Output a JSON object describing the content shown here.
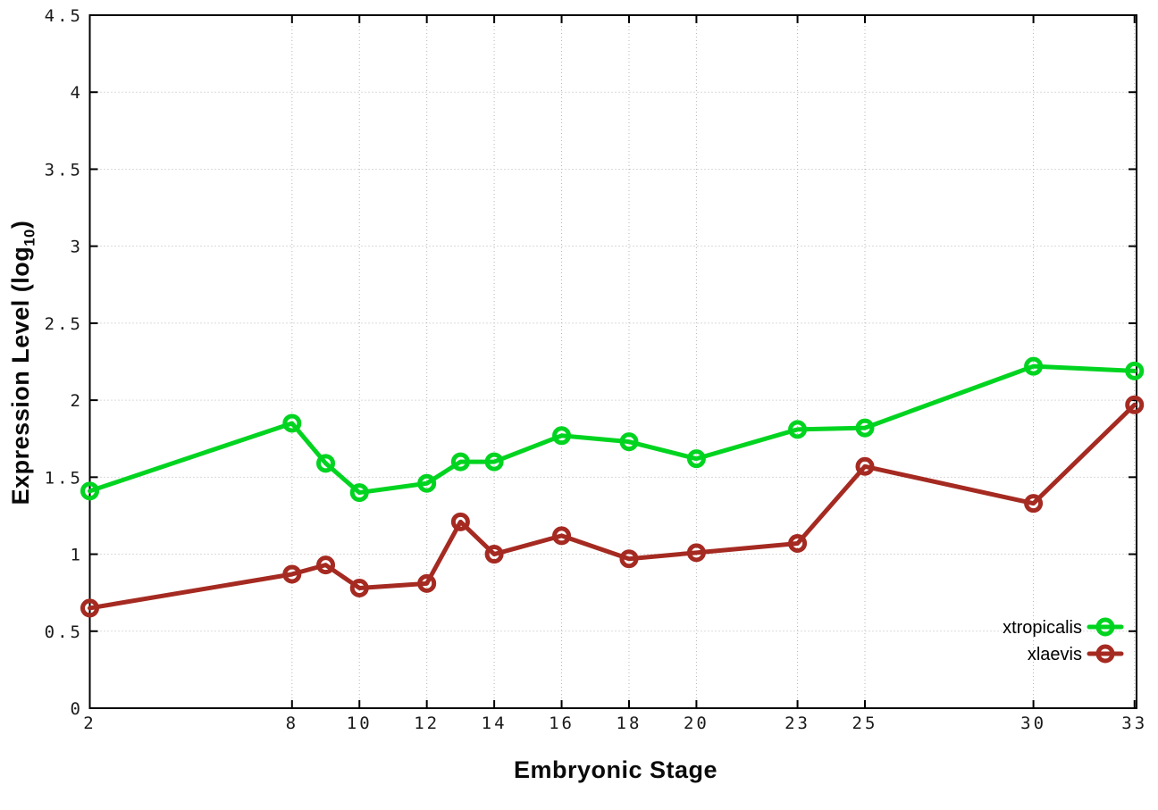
{
  "page": {
    "background_color": "#ffffff"
  },
  "chart_data": {
    "type": "line",
    "title": "",
    "xlabel": "Embryonic Stage",
    "ylabel": "Expression Level (log10)",
    "ylabel_parts": {
      "main": "Expression Level (log",
      "sub": "10",
      "close": ")"
    },
    "x": [
      2,
      8,
      9,
      10,
      12,
      13,
      14,
      16,
      18,
      20,
      23,
      25,
      30,
      33
    ],
    "series": [
      {
        "name": "xtropicalis",
        "color": "#00d420",
        "marker": "open-circle",
        "values": [
          1.41,
          1.85,
          1.59,
          1.4,
          1.46,
          1.6,
          1.6,
          1.77,
          1.73,
          1.62,
          1.81,
          1.82,
          2.22,
          2.19
        ]
      },
      {
        "name": "xlaevis",
        "color": "#a52a21",
        "marker": "open-circle",
        "values": [
          0.65,
          0.87,
          0.93,
          0.78,
          0.81,
          1.21,
          1.0,
          1.12,
          0.97,
          1.01,
          1.07,
          1.57,
          1.33,
          1.97
        ]
      }
    ],
    "xlim": [
      2,
      33.06
    ],
    "ylim": [
      0,
      4.5
    ],
    "x_ticks": {
      "values": [
        2,
        8,
        10,
        12,
        14,
        16,
        18,
        20,
        23,
        25,
        30,
        33
      ],
      "labels": [
        "2",
        "8",
        "10",
        "12",
        "14",
        "16",
        "18",
        "20",
        "23",
        "25",
        "30",
        "33"
      ]
    },
    "y_ticks": {
      "values": [
        0,
        0.5,
        1,
        1.5,
        2,
        2.5,
        3,
        3.5,
        4,
        4.5
      ],
      "labels": [
        "0",
        "0.5",
        "1",
        "1.5",
        "2",
        "2.5",
        "3",
        "3.5",
        "4",
        "4.5"
      ]
    },
    "grid": true,
    "legend_position": "bottom-right"
  },
  "styles": {
    "grid_color": "#b5b5b5",
    "axis_color": "#000000",
    "tick_label_color": "#1a1a1a",
    "legend_text_color": "#000000"
  }
}
